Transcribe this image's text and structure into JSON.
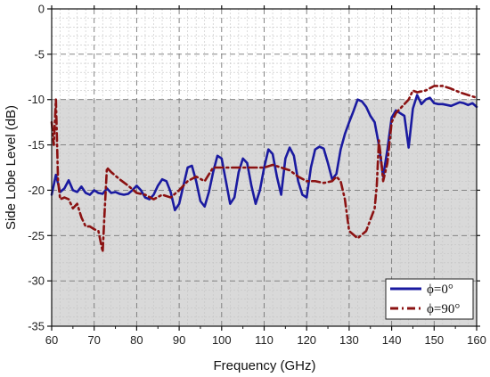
{
  "chart_data": {
    "type": "line",
    "xlabel": "Frequency (GHz)",
    "ylabel": "Side Lobe Level (dB)",
    "xlim": [
      60,
      160
    ],
    "ylim": [
      -35,
      0
    ],
    "xticks": [
      60,
      70,
      80,
      90,
      100,
      110,
      120,
      130,
      140,
      150,
      160
    ],
    "yticks": [
      0,
      -5,
      -10,
      -15,
      -20,
      -25,
      -30,
      -35
    ],
    "grid": true,
    "minor_grid": true,
    "legend_position": "bottom-right",
    "shaded_region": {
      "y_from": -35,
      "y_to": -10,
      "color": "#d9d9d9"
    },
    "series": [
      {
        "name": "ϕ=0°",
        "color": "#1a1aa0",
        "style": "solid",
        "x": [
          60,
          61,
          62,
          63,
          64,
          65,
          66,
          67,
          68,
          69,
          70,
          71,
          72,
          73,
          74,
          75,
          76,
          77,
          78,
          79,
          80,
          81,
          82,
          83,
          84,
          85,
          86,
          87,
          88,
          89,
          90,
          91,
          92,
          93,
          94,
          95,
          96,
          97,
          98,
          99,
          100,
          101,
          102,
          103,
          104,
          105,
          106,
          107,
          108,
          109,
          110,
          111,
          112,
          113,
          114,
          115,
          116,
          117,
          118,
          119,
          120,
          121,
          122,
          123,
          124,
          125,
          126,
          127,
          128,
          129,
          130,
          131,
          132,
          133,
          134,
          135,
          136,
          137,
          138,
          139,
          140,
          141,
          142,
          143,
          144,
          145,
          146,
          147,
          148,
          149,
          150,
          151,
          152,
          153,
          154,
          155,
          156,
          157,
          158,
          159,
          160
        ],
        "y": [
          -20.5,
          -18.3,
          -20.2,
          -19.8,
          -18.9,
          -20.0,
          -20.2,
          -19.6,
          -20.3,
          -20.5,
          -20.0,
          -20.3,
          -20.4,
          -19.8,
          -20.3,
          -20.2,
          -20.4,
          -20.5,
          -20.4,
          -20.0,
          -19.5,
          -20.0,
          -20.8,
          -21.0,
          -20.5,
          -19.5,
          -18.8,
          -19.0,
          -20.2,
          -22.2,
          -21.5,
          -19.5,
          -17.5,
          -17.3,
          -19.0,
          -21.2,
          -21.8,
          -20.2,
          -18.0,
          -16.2,
          -16.5,
          -19.0,
          -21.5,
          -20.8,
          -18.0,
          -16.5,
          -17.0,
          -19.5,
          -21.5,
          -20.0,
          -17.5,
          -15.5,
          -16.0,
          -18.5,
          -20.5,
          -16.5,
          -15.3,
          -16.2,
          -19.0,
          -20.5,
          -20.8,
          -17.5,
          -15.5,
          -15.2,
          -15.4,
          -17.0,
          -18.8,
          -18.2,
          -15.5,
          -13.8,
          -12.5,
          -11.3,
          -10.0,
          -10.2,
          -10.8,
          -11.8,
          -12.5,
          -15.0,
          -18.5,
          -15.5,
          -12.0,
          -11.2,
          -11.5,
          -11.8,
          -15.3,
          -11.0,
          -9.5,
          -10.5,
          -10.0,
          -9.8,
          -10.4,
          -10.5,
          -10.5,
          -10.6,
          -10.7,
          -10.5,
          -10.3,
          -10.4,
          -10.6,
          -10.4,
          -10.8
        ]
      },
      {
        "name": "ϕ=90°",
        "color": "#8b1212",
        "style": "dash-dot",
        "x": [
          60,
          60.5,
          61,
          61.5,
          62,
          63,
          64,
          65,
          66,
          67,
          68,
          69,
          70,
          71,
          72,
          72.5,
          73,
          74,
          76,
          78,
          80,
          82,
          84,
          86,
          88,
          90,
          92,
          94,
          96,
          98,
          100,
          102,
          104,
          106,
          108,
          110,
          112,
          114,
          116,
          118,
          120,
          122,
          124,
          126,
          127,
          128,
          129,
          130,
          132,
          134,
          136,
          136.5,
          137,
          137.5,
          138,
          139,
          140,
          141,
          142,
          143,
          144,
          145,
          146,
          148,
          150,
          152,
          154,
          156,
          158,
          160
        ],
        "y": [
          -12.5,
          -15.0,
          -10.0,
          -19.0,
          -21.0,
          -20.8,
          -21.0,
          -22.0,
          -21.5,
          -23.0,
          -24.0,
          -24.0,
          -24.3,
          -24.5,
          -26.8,
          -22.0,
          -17.5,
          -18.0,
          -18.8,
          -19.5,
          -20.3,
          -20.5,
          -21.0,
          -20.5,
          -20.8,
          -20.0,
          -19.0,
          -18.5,
          -19.0,
          -17.5,
          -17.5,
          -17.5,
          -17.5,
          -17.5,
          -17.5,
          -17.5,
          -17.2,
          -17.5,
          -17.8,
          -18.5,
          -19.0,
          -19.0,
          -19.2,
          -19.0,
          -18.5,
          -19.0,
          -21.0,
          -24.5,
          -25.3,
          -24.5,
          -22.0,
          -19.5,
          -14.5,
          -16.5,
          -19.0,
          -17.0,
          -12.5,
          -11.5,
          -11.0,
          -10.5,
          -10.0,
          -9.0,
          -9.2,
          -9.0,
          -8.5,
          -8.5,
          -8.8,
          -9.2,
          -9.5,
          -9.8
        ]
      }
    ]
  }
}
